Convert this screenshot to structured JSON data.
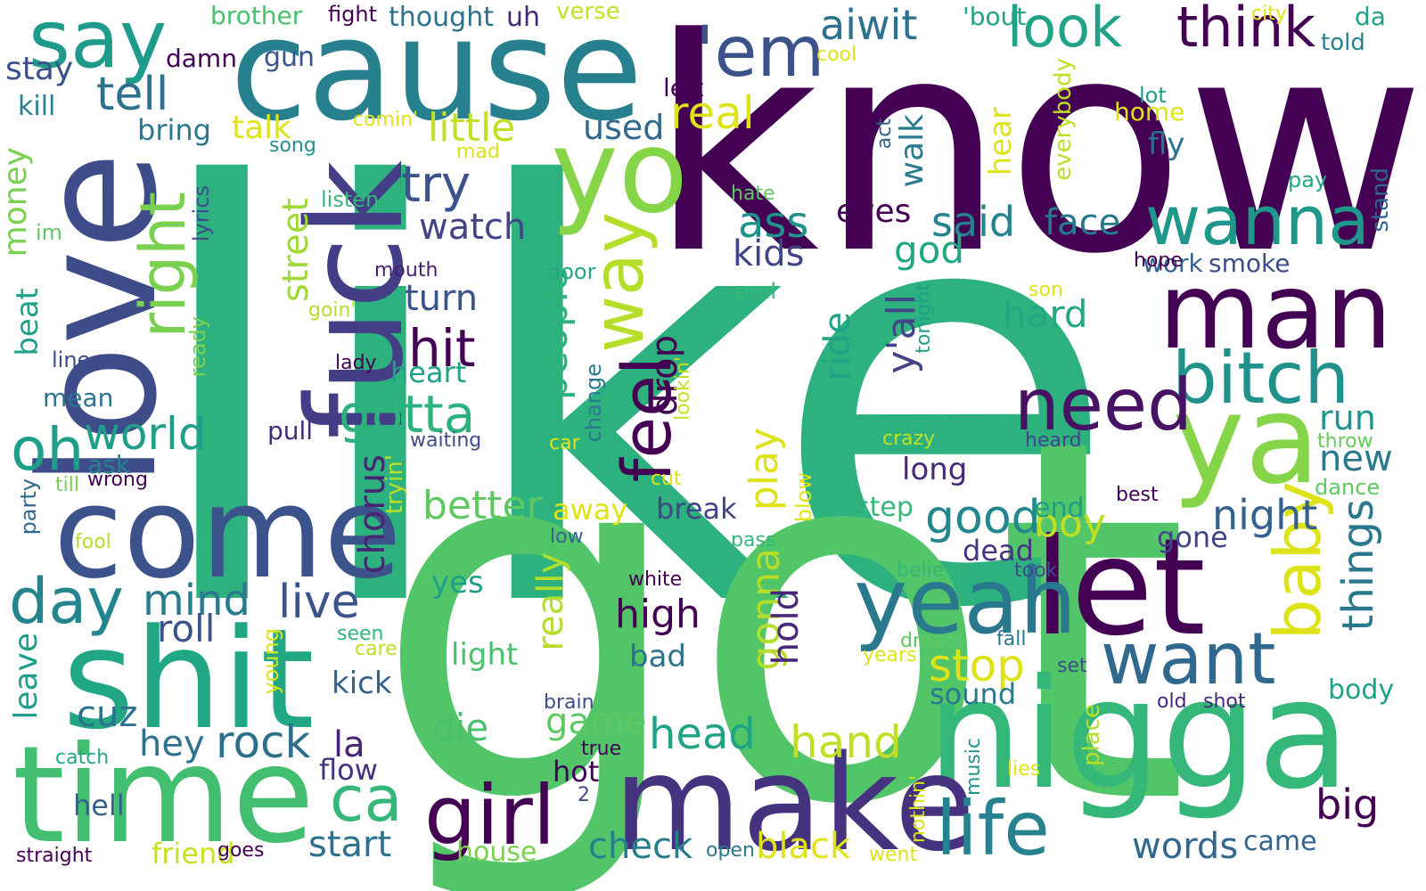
{
  "words": [
    {
      "text": "like",
      "color": "#2db17e"
    },
    {
      "text": "got",
      "color": "#52c569"
    },
    {
      "text": "know",
      "color": "#440154"
    },
    {
      "text": "cause",
      "color": "#27808e"
    },
    {
      "text": "nigga",
      "color": "#35b779"
    },
    {
      "text": "make",
      "color": "#46337f"
    },
    {
      "text": "love",
      "color": "#3e4c8a"
    },
    {
      "text": "shit",
      "color": "#22a785"
    },
    {
      "text": "time",
      "color": "#42be71"
    },
    {
      "text": "come",
      "color": "#3b528b"
    },
    {
      "text": "yo",
      "color": "#86d549"
    },
    {
      "text": "ya",
      "color": "#86d549"
    },
    {
      "text": "fuck",
      "color": "#433e85"
    },
    {
      "text": "man",
      "color": "#440154"
    },
    {
      "text": "let",
      "color": "#440154"
    },
    {
      "text": "yeah",
      "color": "#2a788e"
    },
    {
      "text": "'em",
      "color": "#3b528b"
    },
    {
      "text": "say",
      "color": "#1e9b8a"
    },
    {
      "text": "wanna",
      "color": "#1f988b"
    },
    {
      "text": "bitch",
      "color": "#21918c"
    },
    {
      "text": "girl",
      "color": "#440154"
    },
    {
      "text": "life",
      "color": "#26828e"
    },
    {
      "text": "want",
      "color": "#31688e"
    },
    {
      "text": "need",
      "color": "#471164"
    },
    {
      "text": "right",
      "color": "#7ad151"
    },
    {
      "text": "way",
      "color": "#b5de2b"
    },
    {
      "text": "feel",
      "color": "#440154"
    },
    {
      "text": "baby",
      "color": "#dde318"
    },
    {
      "text": "think",
      "color": "#440154"
    },
    {
      "text": "look",
      "color": "#20a386"
    },
    {
      "text": "oh",
      "color": "#1f9e89"
    },
    {
      "text": "day",
      "color": "#25858e"
    },
    {
      "text": "ca",
      "color": "#35b779"
    },
    {
      "text": "gotta",
      "color": "#2db27d"
    },
    {
      "text": "tell",
      "color": "#2c728e"
    },
    {
      "text": "try",
      "color": "#3b528b"
    },
    {
      "text": "hit",
      "color": "#440154"
    },
    {
      "text": "people",
      "color": "#2db27d"
    },
    {
      "text": "world",
      "color": "#1f9e89"
    },
    {
      "text": "mind",
      "color": "#297b8e"
    },
    {
      "text": "rock",
      "color": "#2d708e"
    },
    {
      "text": "head",
      "color": "#20a486"
    },
    {
      "text": "hand",
      "color": "#c2df23"
    },
    {
      "text": "stop",
      "color": "#dde318"
    },
    {
      "text": "things",
      "color": "#2a788e"
    },
    {
      "text": "good",
      "color": "#23888e"
    },
    {
      "text": "night",
      "color": "#34618d"
    },
    {
      "text": "boy",
      "color": "#bddf26"
    },
    {
      "text": "y'all",
      "color": "#414487"
    },
    {
      "text": "ass",
      "color": "#21918c"
    },
    {
      "text": "said",
      "color": "#26828e"
    },
    {
      "text": "real",
      "color": "#dde318"
    },
    {
      "text": "little",
      "color": "#c2df23"
    },
    {
      "text": "street",
      "color": "#a0da39"
    },
    {
      "text": "gonna",
      "color": "#b5de2b"
    },
    {
      "text": "play",
      "color": "#dde318"
    },
    {
      "text": "live",
      "color": "#3b528b"
    },
    {
      "text": "chorus",
      "color": "#482475"
    },
    {
      "text": "better",
      "color": "#5ec962"
    },
    {
      "text": "high",
      "color": "#440154"
    },
    {
      "text": "hold",
      "color": "#482878"
    },
    {
      "text": "drop",
      "color": "#440154"
    },
    {
      "text": "check",
      "color": "#277f8e"
    },
    {
      "text": "black",
      "color": "#dde318"
    },
    {
      "text": "start",
      "color": "#2c728e"
    },
    {
      "text": "big",
      "color": "#440154"
    },
    {
      "text": "words",
      "color": "#31688e"
    },
    {
      "text": "game",
      "color": "#5ec962"
    },
    {
      "text": "die",
      "color": "#4ac16d"
    },
    {
      "text": "hey",
      "color": "#2c728e"
    },
    {
      "text": "la",
      "color": "#482475"
    },
    {
      "text": "cuz",
      "color": "#2c728e"
    },
    {
      "text": "roll",
      "color": "#3b528b"
    },
    {
      "text": "turn",
      "color": "#3b528b"
    },
    {
      "text": "watch",
      "color": "#414487"
    },
    {
      "text": "hard",
      "color": "#22a884"
    },
    {
      "text": "ride",
      "color": "#20a386"
    },
    {
      "text": "walk",
      "color": "#297b8e"
    },
    {
      "text": "god",
      "color": "#22a785"
    },
    {
      "text": "kids",
      "color": "#414487"
    },
    {
      "text": "eyes",
      "color": "#440154"
    },
    {
      "text": "face",
      "color": "#29798e"
    },
    {
      "text": "aiwit",
      "color": "#2c728e"
    },
    {
      "text": "used",
      "color": "#31688e"
    },
    {
      "text": "talk",
      "color": "#dde318"
    },
    {
      "text": "money",
      "color": "#7ad151"
    },
    {
      "text": "beat",
      "color": "#1fa088"
    },
    {
      "text": "new",
      "color": "#2a788e"
    },
    {
      "text": "run",
      "color": "#1f968b"
    },
    {
      "text": "really",
      "color": "#b5de2b"
    },
    {
      "text": "long",
      "color": "#482878"
    },
    {
      "text": "hear",
      "color": "#dde318"
    },
    {
      "text": "everybody",
      "color": "#bddf26"
    },
    {
      "text": "fly",
      "color": "#2c728e"
    },
    {
      "text": "home",
      "color": "#dde318"
    },
    {
      "text": "smoke",
      "color": "#3e4c8a"
    },
    {
      "text": "work",
      "color": "#34618d"
    },
    {
      "text": "leave",
      "color": "#1f9e89"
    },
    {
      "text": "kick",
      "color": "#33638d"
    },
    {
      "text": "light",
      "color": "#4ac16d"
    },
    {
      "text": "yes",
      "color": "#1f9e89"
    },
    {
      "text": "bad",
      "color": "#2c728e"
    },
    {
      "text": "heart",
      "color": "#1fa187"
    },
    {
      "text": "break",
      "color": "#414487"
    },
    {
      "text": "away",
      "color": "#dde318"
    },
    {
      "text": "dead",
      "color": "#46327e"
    },
    {
      "text": "gone",
      "color": "#414487"
    },
    {
      "text": "step",
      "color": "#35b779"
    },
    {
      "text": "end",
      "color": "#1f9e89"
    },
    {
      "text": "sound",
      "color": "#2a788e"
    },
    {
      "text": "flow",
      "color": "#46327e"
    },
    {
      "text": "hot",
      "color": "#440154"
    },
    {
      "text": "hell",
      "color": "#33638d"
    },
    {
      "text": "friend",
      "color": "#c8e020"
    },
    {
      "text": "house",
      "color": "#7ad151"
    },
    {
      "text": "came",
      "color": "#33638d"
    },
    {
      "text": "body",
      "color": "#1fa187"
    },
    {
      "text": "dance",
      "color": "#5ec962"
    },
    {
      "text": "throw",
      "color": "#65cb5e"
    },
    {
      "text": "stand",
      "color": "#32648e"
    },
    {
      "text": "pay",
      "color": "#22a785"
    },
    {
      "text": "told",
      "color": "#25838e"
    },
    {
      "text": "da",
      "color": "#1fa187"
    },
    {
      "text": "city",
      "color": "#dde318"
    },
    {
      "text": "'bout",
      "color": "#20a386"
    },
    {
      "text": "uh",
      "color": "#482878"
    },
    {
      "text": "thought",
      "color": "#2c728e"
    },
    {
      "text": "verse",
      "color": "#c2df23"
    },
    {
      "text": "fight",
      "color": "#440154"
    },
    {
      "text": "brother",
      "color": "#4ac16d"
    },
    {
      "text": "damn",
      "color": "#440154"
    },
    {
      "text": "gun",
      "color": "#3b528b"
    },
    {
      "text": "stay",
      "color": "#3b528b"
    },
    {
      "text": "kill",
      "color": "#26828e"
    },
    {
      "text": "bring",
      "color": "#2a788e"
    },
    {
      "text": "comin'",
      "color": "#dde318"
    },
    {
      "text": "song",
      "color": "#21918c"
    },
    {
      "text": "mad",
      "color": "#dde318"
    },
    {
      "text": "left",
      "color": "#440154"
    },
    {
      "text": "cool",
      "color": "#dde318"
    },
    {
      "text": "act",
      "color": "#33638d"
    },
    {
      "text": "lot",
      "color": "#1f9e89"
    },
    {
      "text": "hate",
      "color": "#5ec962"
    },
    {
      "text": "listen",
      "color": "#35b779"
    },
    {
      "text": "lyrics",
      "color": "#3e4c8a"
    },
    {
      "text": "im",
      "color": "#5ec962"
    },
    {
      "text": "mouth",
      "color": "#481f70"
    },
    {
      "text": "door",
      "color": "#22a785"
    },
    {
      "text": "soul",
      "color": "#35b779"
    },
    {
      "text": "goin'",
      "color": "#b5de2b"
    },
    {
      "text": "hope",
      "color": "#440154"
    },
    {
      "text": "son",
      "color": "#dde318"
    },
    {
      "text": "tonight",
      "color": "#1f9e89"
    },
    {
      "text": "line",
      "color": "#3e4c8a"
    },
    {
      "text": "lady",
      "color": "#440154"
    },
    {
      "text": "ready",
      "color": "#7ad151"
    },
    {
      "text": "mean",
      "color": "#2c728e"
    },
    {
      "text": "pull",
      "color": "#482878"
    },
    {
      "text": "waiting",
      "color": "#3e4c8a"
    },
    {
      "text": "change",
      "color": "#2a788e"
    },
    {
      "text": "lookin'",
      "color": "#c2df23"
    },
    {
      "text": "car",
      "color": "#dde318"
    },
    {
      "text": "crazy",
      "color": "#c2df23"
    },
    {
      "text": "heard",
      "color": "#414487"
    },
    {
      "text": "ask",
      "color": "#26828e"
    },
    {
      "text": "wrong",
      "color": "#440154"
    },
    {
      "text": "till",
      "color": "#7ad151"
    },
    {
      "text": "party",
      "color": "#31688e"
    },
    {
      "text": "tryin'",
      "color": "#bddf26"
    },
    {
      "text": "cut",
      "color": "#dde318"
    },
    {
      "text": "blow",
      "color": "#dde318"
    },
    {
      "text": "best",
      "color": "#440154"
    },
    {
      "text": "fool",
      "color": "#b5de2b"
    },
    {
      "text": "low",
      "color": "#34618d"
    },
    {
      "text": "pass",
      "color": "#35b779"
    },
    {
      "text": "believe",
      "color": "#35b779"
    },
    {
      "text": "took",
      "color": "#3e4c8a"
    },
    {
      "text": "white",
      "color": "#440154"
    },
    {
      "text": "seen",
      "color": "#35b779"
    },
    {
      "text": "care",
      "color": "#bddf26"
    },
    {
      "text": "young",
      "color": "#dde318"
    },
    {
      "text": "dream",
      "color": "#5ec962"
    },
    {
      "text": "years",
      "color": "#dde318"
    },
    {
      "text": "fall",
      "color": "#2a788e"
    },
    {
      "text": "set",
      "color": "#3b528b"
    },
    {
      "text": "old",
      "color": "#482878"
    },
    {
      "text": "shot",
      "color": "#482878"
    },
    {
      "text": "brain",
      "color": "#3e4c8a"
    },
    {
      "text": "true",
      "color": "#440154"
    },
    {
      "text": "place",
      "color": "#b5de2b"
    },
    {
      "text": "catch",
      "color": "#22a785"
    },
    {
      "text": "2",
      "color": "#3e4c8a"
    },
    {
      "text": "music",
      "color": "#21918c"
    },
    {
      "text": "nothin'",
      "color": "#dde318"
    },
    {
      "text": "lies",
      "color": "#dde318"
    },
    {
      "text": "straight",
      "color": "#440154"
    },
    {
      "text": "goes",
      "color": "#440154"
    },
    {
      "text": "open",
      "color": "#2a788e"
    },
    {
      "text": "went",
      "color": "#dde318"
    }
  ]
}
